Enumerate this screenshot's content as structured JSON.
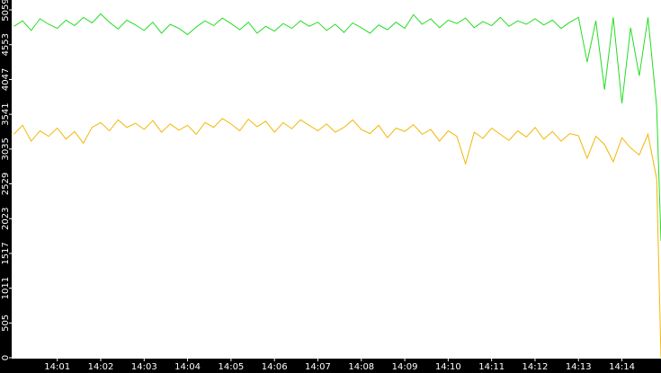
{
  "chart_data": {
    "type": "line",
    "x": [
      0,
      0.2,
      0.4,
      0.6,
      0.8,
      1.0,
      1.2,
      1.4,
      1.6,
      1.8,
      2.0,
      2.2,
      2.4,
      2.6,
      2.8,
      3.0,
      3.2,
      3.4,
      3.6,
      3.8,
      4.0,
      4.2,
      4.4,
      4.6,
      4.8,
      5.0,
      5.2,
      5.4,
      5.6,
      5.8,
      6.0,
      6.2,
      6.4,
      6.6,
      6.8,
      7.0,
      7.2,
      7.4,
      7.6,
      7.8,
      8.0,
      8.2,
      8.4,
      8.6,
      8.8,
      9.0,
      9.2,
      9.4,
      9.6,
      9.8,
      10.0,
      10.2,
      10.4,
      10.6,
      10.8,
      11.0,
      11.2,
      11.4,
      11.6,
      11.8,
      12.0,
      12.2,
      12.4,
      12.6,
      12.8,
      13.0,
      13.2,
      13.4,
      13.6,
      13.8,
      14.0,
      14.2,
      14.4,
      14.6,
      14.8,
      14.9
    ],
    "series": [
      {
        "color": "#22dd22",
        "values": [
          4820,
          4900,
          4760,
          4930,
          4850,
          4790,
          4910,
          4830,
          4950,
          4870,
          5000,
          4880,
          4780,
          4910,
          4840,
          4760,
          4880,
          4720,
          4850,
          4790,
          4700,
          4810,
          4900,
          4830,
          4940,
          4860,
          4770,
          4880,
          4720,
          4820,
          4750,
          4860,
          4790,
          4900,
          4820,
          4880,
          4760,
          4850,
          4730,
          4870,
          4800,
          4720,
          4840,
          4770,
          4880,
          4790,
          4990,
          4850,
          4930,
          4800,
          4910,
          4860,
          4940,
          4800,
          4890,
          4830,
          4950,
          4820,
          4900,
          4850,
          4930,
          4840,
          4910,
          4790,
          4880,
          4950,
          4300,
          4900,
          3900,
          4950,
          3700,
          4800,
          4100,
          4950,
          3650,
          1700
        ]
      },
      {
        "color": "#f2b705",
        "values": [
          3250,
          3380,
          3150,
          3300,
          3220,
          3340,
          3180,
          3290,
          3120,
          3350,
          3420,
          3300,
          3460,
          3350,
          3410,
          3320,
          3450,
          3280,
          3400,
          3310,
          3380,
          3250,
          3420,
          3350,
          3480,
          3400,
          3300,
          3470,
          3360,
          3440,
          3280,
          3420,
          3330,
          3460,
          3380,
          3300,
          3400,
          3280,
          3350,
          3460,
          3320,
          3260,
          3380,
          3200,
          3340,
          3290,
          3390,
          3250,
          3320,
          3150,
          3300,
          3220,
          2820,
          3280,
          3190,
          3340,
          3250,
          3160,
          3300,
          3210,
          3350,
          3180,
          3290,
          3150,
          3260,
          3230,
          2900,
          3220,
          3100,
          2850,
          3200,
          3050,
          2950,
          3250,
          2600,
          0
        ]
      }
    ],
    "xlim": [
      -0.05,
      14.9
    ],
    "xticks": [
      {
        "value": 1,
        "label": "14:01"
      },
      {
        "value": 2,
        "label": "14:02"
      },
      {
        "value": 3,
        "label": "14:03"
      },
      {
        "value": 4,
        "label": "14:04"
      },
      {
        "value": 5,
        "label": "14:05"
      },
      {
        "value": 6,
        "label": "14:06"
      },
      {
        "value": 7,
        "label": "14:07"
      },
      {
        "value": 8,
        "label": "14:08"
      },
      {
        "value": 9,
        "label": "14:09"
      },
      {
        "value": 10,
        "label": "14:10"
      },
      {
        "value": 11,
        "label": "14:11"
      },
      {
        "value": 12,
        "label": "14:12"
      },
      {
        "value": 13,
        "label": "14:13"
      },
      {
        "value": 14,
        "label": "14:14"
      }
    ],
    "ylim": [
      0,
      5059
    ],
    "yticks": [
      0,
      505,
      1011,
      1517,
      2023,
      2529,
      3035,
      3541,
      4047,
      4553,
      5059
    ]
  }
}
